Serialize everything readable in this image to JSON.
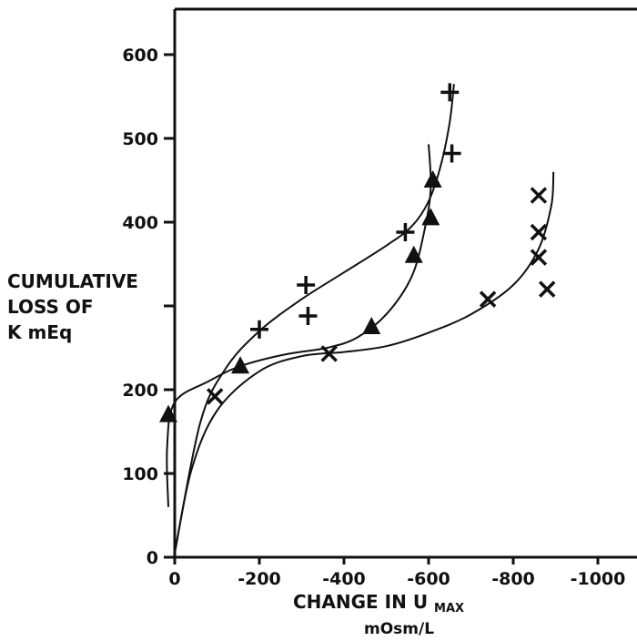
{
  "chart_data": {
    "type": "scatter",
    "title": "",
    "ylabel": [
      "CUMULATIVE",
      "LOSS OF",
      "K mEq"
    ],
    "xlabel": {
      "line1_main": "CHANGE  IN  U",
      "line1_sub": "MAX",
      "line2": "mOsm/L"
    },
    "xlim": [
      0,
      -1000
    ],
    "ylim": [
      0,
      600
    ],
    "x_ticks": [
      {
        "value": 0,
        "label": "0"
      },
      {
        "value": -200,
        "label": "-200"
      },
      {
        "value": -400,
        "label": "-400"
      },
      {
        "value": -600,
        "label": "-600"
      },
      {
        "value": -800,
        "label": "-800"
      },
      {
        "value": -1000,
        "label": "-1000"
      }
    ],
    "y_ticks": [
      {
        "value": 0,
        "label": "0"
      },
      {
        "value": 100,
        "label": "100"
      },
      {
        "value": 200,
        "label": "200"
      },
      {
        "value": 300,
        "label": ""
      },
      {
        "value": 400,
        "label": "400"
      },
      {
        "value": 500,
        "label": "500"
      },
      {
        "value": 600,
        "label": "600"
      }
    ],
    "series": [
      {
        "marker": "plus",
        "points": [
          {
            "x": -200,
            "y": 272
          },
          {
            "x": -310,
            "y": 325
          },
          {
            "x": -315,
            "y": 288
          },
          {
            "x": -545,
            "y": 388
          },
          {
            "x": -655,
            "y": 482
          },
          {
            "x": -650,
            "y": 555
          }
        ],
        "curve": [
          [
            0,
            5
          ],
          [
            -60,
            160
          ],
          [
            -120,
            225
          ],
          [
            -200,
            270
          ],
          [
            -300,
            308
          ],
          [
            -400,
            340
          ],
          [
            -500,
            372
          ],
          [
            -560,
            395
          ],
          [
            -600,
            425
          ],
          [
            -630,
            470
          ],
          [
            -650,
            520
          ],
          [
            -660,
            565
          ]
        ]
      },
      {
        "marker": "triangle",
        "points": [
          {
            "x": 15,
            "y": 170
          },
          {
            "x": -155,
            "y": 228
          },
          {
            "x": -465,
            "y": 275
          },
          {
            "x": -565,
            "y": 360
          },
          {
            "x": -605,
            "y": 405
          },
          {
            "x": -610,
            "y": 450
          }
        ],
        "curve": [
          [
            15,
            60
          ],
          [
            18,
            130
          ],
          [
            0,
            185
          ],
          [
            -80,
            210
          ],
          [
            -155,
            228
          ],
          [
            -260,
            242
          ],
          [
            -360,
            250
          ],
          [
            -430,
            262
          ],
          [
            -500,
            290
          ],
          [
            -560,
            335
          ],
          [
            -590,
            390
          ],
          [
            -605,
            440
          ],
          [
            -600,
            493
          ]
        ]
      },
      {
        "marker": "cross",
        "points": [
          {
            "x": -95,
            "y": 192
          },
          {
            "x": -365,
            "y": 243
          },
          {
            "x": -740,
            "y": 308
          },
          {
            "x": -860,
            "y": 358
          },
          {
            "x": -860,
            "y": 388
          },
          {
            "x": -860,
            "y": 432
          },
          {
            "x": -880,
            "y": 320
          }
        ],
        "curve": [
          [
            0,
            5
          ],
          [
            -40,
            105
          ],
          [
            -100,
            175
          ],
          [
            -200,
            222
          ],
          [
            -300,
            240
          ],
          [
            -400,
            245
          ],
          [
            -500,
            252
          ],
          [
            -600,
            268
          ],
          [
            -700,
            290
          ],
          [
            -800,
            325
          ],
          [
            -860,
            368
          ],
          [
            -890,
            420
          ],
          [
            -895,
            460
          ]
        ]
      }
    ]
  }
}
